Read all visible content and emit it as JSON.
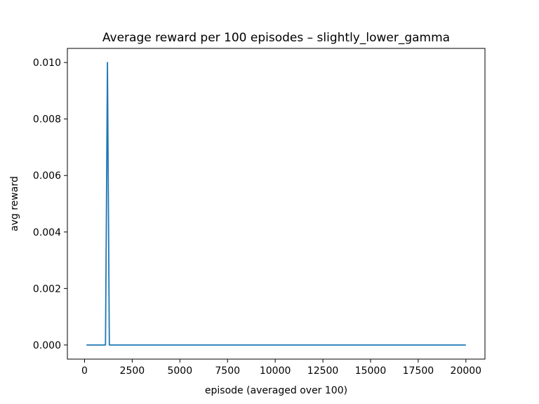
{
  "chart_data": {
    "type": "line",
    "title": "Average reward per 100 episodes – slightly_lower_gamma",
    "xlabel": "episode (averaged over 100)",
    "ylabel": "avg reward",
    "xlim": [
      -900,
      21000
    ],
    "ylim": [
      -0.0005,
      0.0105
    ],
    "xticks": [
      0,
      2500,
      5000,
      7500,
      10000,
      12500,
      15000,
      17500,
      20000
    ],
    "xtick_labels": [
      "0",
      "2500",
      "5000",
      "7500",
      "10000",
      "12500",
      "15000",
      "17500",
      "20000"
    ],
    "yticks": [
      0.0,
      0.002,
      0.004,
      0.006,
      0.008,
      0.01
    ],
    "ytick_labels": [
      "0.000",
      "0.002",
      "0.004",
      "0.006",
      "0.008",
      "0.010"
    ],
    "grid": false,
    "legend": "none",
    "series": [
      {
        "color": "#1f77b4",
        "x": [
          100,
          1100,
          1200,
          1300,
          20000
        ],
        "y": [
          0.0,
          0.0,
          0.01,
          0.0,
          0.0
        ]
      }
    ]
  }
}
